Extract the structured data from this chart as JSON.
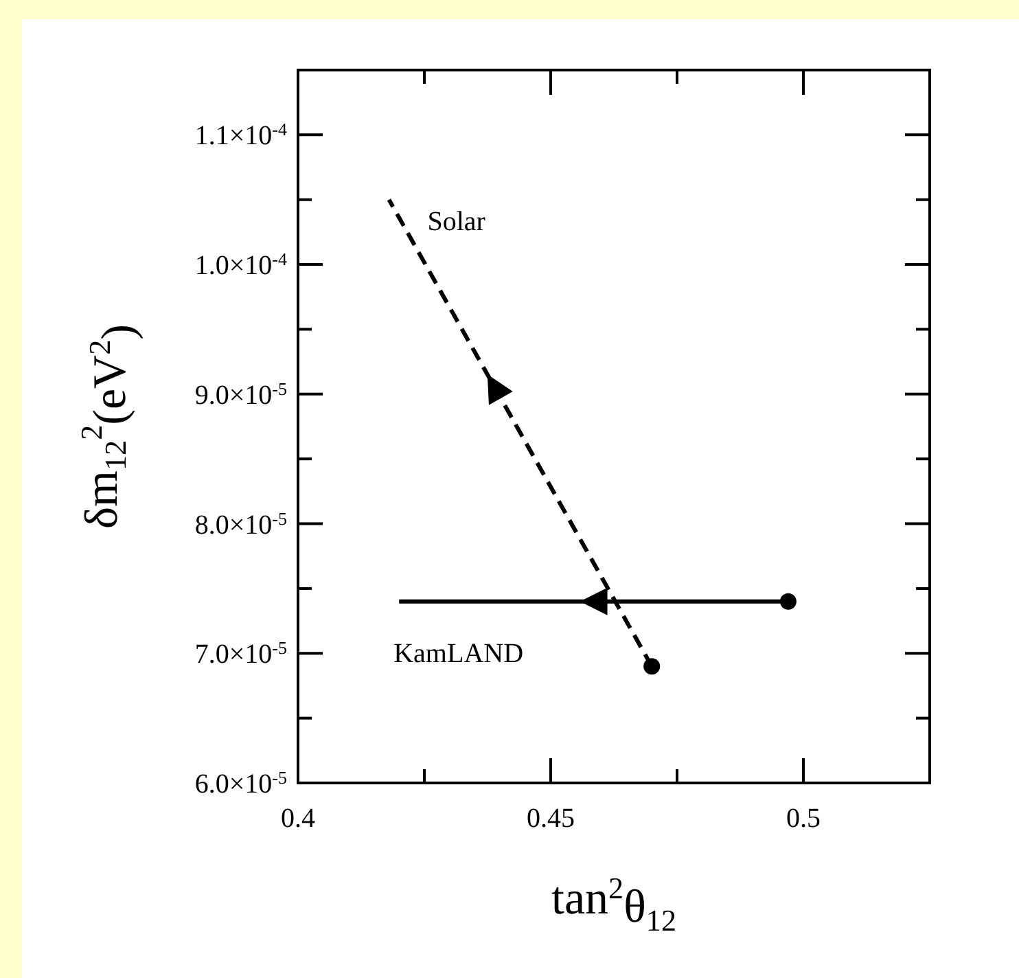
{
  "chart_data": {
    "type": "line",
    "xlabel": "tan$^{2}$θ$_{12}$",
    "ylabel": "δm$_{12}$$^{2}$(eV$^{2}$)",
    "xlim": [
      0.4,
      0.525
    ],
    "xticks": [
      0.4,
      {
        "value": 0.425,
        "label": null
      },
      0.45,
      {
        "value": 0.475,
        "label": null
      },
      0.5
    ],
    "ylim": [
      6e-05,
      0.000115
    ],
    "yticks": [
      {
        "value": 6e-05,
        "label": "6.0×10$^{-5}$"
      },
      {
        "value": 6.5e-05,
        "label": null
      },
      {
        "value": 7e-05,
        "label": "7.0×10$^{-5}$"
      },
      {
        "value": 7.5e-05,
        "label": null
      },
      {
        "value": 8e-05,
        "label": "8.0×10$^{-5}$"
      },
      {
        "value": 8.5e-05,
        "label": null
      },
      {
        "value": 9e-05,
        "label": "9.0×10$^{-5}$"
      },
      {
        "value": 9.5e-05,
        "label": null
      },
      {
        "value": 0.0001,
        "label": "1.0×10$^{-4}$"
      },
      {
        "value": 0.000105,
        "label": null
      },
      {
        "value": 0.00011,
        "label": "1.1×10$^{-4}$"
      }
    ],
    "grid": false,
    "series": [
      {
        "name": "Solar",
        "color": "#000000",
        "line_style": "dashed",
        "x": [
          0.47,
          0.418
        ],
        "values": [
          6.9e-05,
          0.000105
        ]
      },
      {
        "name": "KamLAND",
        "color": "#000000",
        "line_style": "solid",
        "x": [
          0.497,
          0.42
        ],
        "values": [
          7.4e-05,
          7.4e-05
        ]
      },
      {
        "type": "scatter",
        "color": "#000000",
        "marker": "circle",
        "x": [
          0.47,
          0.497
        ],
        "values": [
          6.9e-05,
          7.4e-05
        ]
      }
    ]
  }
}
